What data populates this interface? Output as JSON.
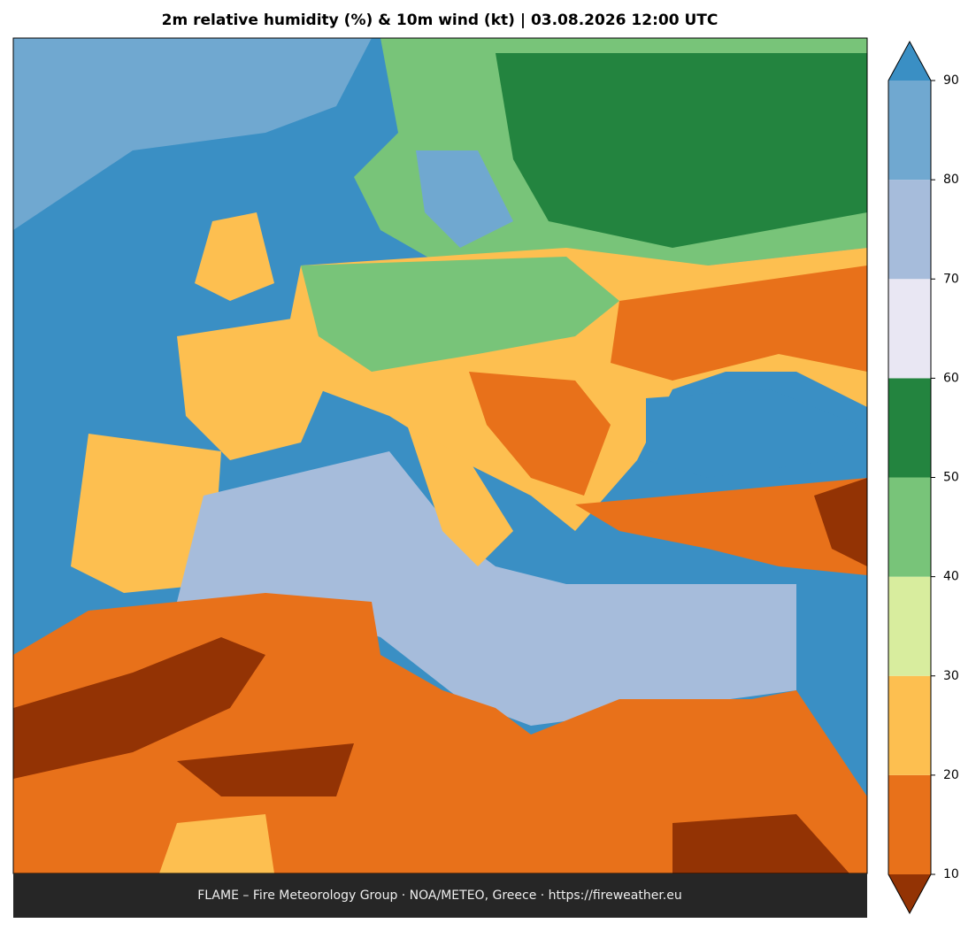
{
  "title": "2m relative humidity (%) & 10m wind (kt)  |  03.08.2026 12:00 UTC",
  "footer": "FLAME – Fire Meteorology Group · NOA/METEO, Greece · https://fireweather.eu",
  "colorbar": {
    "ticks": [
      10,
      20,
      30,
      40,
      50,
      60,
      70,
      80,
      90
    ],
    "colors": [
      "#933304",
      "#e8711a",
      "#fdbf50",
      "#d8ed9e",
      "#78c479",
      "#23843f",
      "#e9e7f3",
      "#a6bcdb",
      "#70a8d0",
      "#3a8fc4"
    ]
  }
}
